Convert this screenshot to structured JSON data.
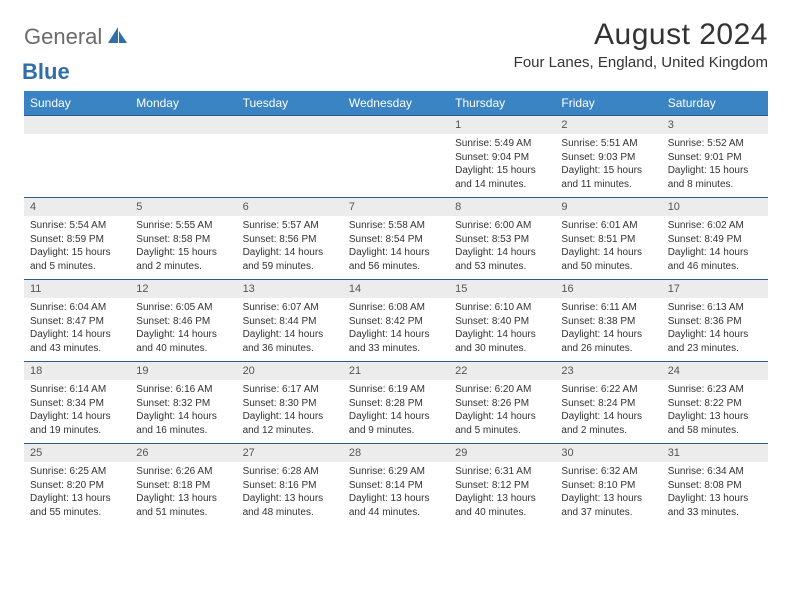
{
  "brand": {
    "part1": "General",
    "part2": "Blue"
  },
  "title": "August 2024",
  "location": "Four Lanes, England, United Kingdom",
  "colors": {
    "header_bg": "#3b84c4",
    "header_text": "#ffffff",
    "row_divider": "#2c5d8a",
    "daynum_bg": "#ececec",
    "body_text": "#333333",
    "brand_gray": "#6b6b6b",
    "brand_blue": "#2f6fa8"
  },
  "day_names": [
    "Sunday",
    "Monday",
    "Tuesday",
    "Wednesday",
    "Thursday",
    "Friday",
    "Saturday"
  ],
  "weeks": [
    [
      {
        "n": "",
        "sr": "",
        "ss": "",
        "d1": "",
        "d2": ""
      },
      {
        "n": "",
        "sr": "",
        "ss": "",
        "d1": "",
        "d2": ""
      },
      {
        "n": "",
        "sr": "",
        "ss": "",
        "d1": "",
        "d2": ""
      },
      {
        "n": "",
        "sr": "",
        "ss": "",
        "d1": "",
        "d2": ""
      },
      {
        "n": "1",
        "sr": "Sunrise: 5:49 AM",
        "ss": "Sunset: 9:04 PM",
        "d1": "Daylight: 15 hours",
        "d2": "and 14 minutes."
      },
      {
        "n": "2",
        "sr": "Sunrise: 5:51 AM",
        "ss": "Sunset: 9:03 PM",
        "d1": "Daylight: 15 hours",
        "d2": "and 11 minutes."
      },
      {
        "n": "3",
        "sr": "Sunrise: 5:52 AM",
        "ss": "Sunset: 9:01 PM",
        "d1": "Daylight: 15 hours",
        "d2": "and 8 minutes."
      }
    ],
    [
      {
        "n": "4",
        "sr": "Sunrise: 5:54 AM",
        "ss": "Sunset: 8:59 PM",
        "d1": "Daylight: 15 hours",
        "d2": "and 5 minutes."
      },
      {
        "n": "5",
        "sr": "Sunrise: 5:55 AM",
        "ss": "Sunset: 8:58 PM",
        "d1": "Daylight: 15 hours",
        "d2": "and 2 minutes."
      },
      {
        "n": "6",
        "sr": "Sunrise: 5:57 AM",
        "ss": "Sunset: 8:56 PM",
        "d1": "Daylight: 14 hours",
        "d2": "and 59 minutes."
      },
      {
        "n": "7",
        "sr": "Sunrise: 5:58 AM",
        "ss": "Sunset: 8:54 PM",
        "d1": "Daylight: 14 hours",
        "d2": "and 56 minutes."
      },
      {
        "n": "8",
        "sr": "Sunrise: 6:00 AM",
        "ss": "Sunset: 8:53 PM",
        "d1": "Daylight: 14 hours",
        "d2": "and 53 minutes."
      },
      {
        "n": "9",
        "sr": "Sunrise: 6:01 AM",
        "ss": "Sunset: 8:51 PM",
        "d1": "Daylight: 14 hours",
        "d2": "and 50 minutes."
      },
      {
        "n": "10",
        "sr": "Sunrise: 6:02 AM",
        "ss": "Sunset: 8:49 PM",
        "d1": "Daylight: 14 hours",
        "d2": "and 46 minutes."
      }
    ],
    [
      {
        "n": "11",
        "sr": "Sunrise: 6:04 AM",
        "ss": "Sunset: 8:47 PM",
        "d1": "Daylight: 14 hours",
        "d2": "and 43 minutes."
      },
      {
        "n": "12",
        "sr": "Sunrise: 6:05 AM",
        "ss": "Sunset: 8:46 PM",
        "d1": "Daylight: 14 hours",
        "d2": "and 40 minutes."
      },
      {
        "n": "13",
        "sr": "Sunrise: 6:07 AM",
        "ss": "Sunset: 8:44 PM",
        "d1": "Daylight: 14 hours",
        "d2": "and 36 minutes."
      },
      {
        "n": "14",
        "sr": "Sunrise: 6:08 AM",
        "ss": "Sunset: 8:42 PM",
        "d1": "Daylight: 14 hours",
        "d2": "and 33 minutes."
      },
      {
        "n": "15",
        "sr": "Sunrise: 6:10 AM",
        "ss": "Sunset: 8:40 PM",
        "d1": "Daylight: 14 hours",
        "d2": "and 30 minutes."
      },
      {
        "n": "16",
        "sr": "Sunrise: 6:11 AM",
        "ss": "Sunset: 8:38 PM",
        "d1": "Daylight: 14 hours",
        "d2": "and 26 minutes."
      },
      {
        "n": "17",
        "sr": "Sunrise: 6:13 AM",
        "ss": "Sunset: 8:36 PM",
        "d1": "Daylight: 14 hours",
        "d2": "and 23 minutes."
      }
    ],
    [
      {
        "n": "18",
        "sr": "Sunrise: 6:14 AM",
        "ss": "Sunset: 8:34 PM",
        "d1": "Daylight: 14 hours",
        "d2": "and 19 minutes."
      },
      {
        "n": "19",
        "sr": "Sunrise: 6:16 AM",
        "ss": "Sunset: 8:32 PM",
        "d1": "Daylight: 14 hours",
        "d2": "and 16 minutes."
      },
      {
        "n": "20",
        "sr": "Sunrise: 6:17 AM",
        "ss": "Sunset: 8:30 PM",
        "d1": "Daylight: 14 hours",
        "d2": "and 12 minutes."
      },
      {
        "n": "21",
        "sr": "Sunrise: 6:19 AM",
        "ss": "Sunset: 8:28 PM",
        "d1": "Daylight: 14 hours",
        "d2": "and 9 minutes."
      },
      {
        "n": "22",
        "sr": "Sunrise: 6:20 AM",
        "ss": "Sunset: 8:26 PM",
        "d1": "Daylight: 14 hours",
        "d2": "and 5 minutes."
      },
      {
        "n": "23",
        "sr": "Sunrise: 6:22 AM",
        "ss": "Sunset: 8:24 PM",
        "d1": "Daylight: 14 hours",
        "d2": "and 2 minutes."
      },
      {
        "n": "24",
        "sr": "Sunrise: 6:23 AM",
        "ss": "Sunset: 8:22 PM",
        "d1": "Daylight: 13 hours",
        "d2": "and 58 minutes."
      }
    ],
    [
      {
        "n": "25",
        "sr": "Sunrise: 6:25 AM",
        "ss": "Sunset: 8:20 PM",
        "d1": "Daylight: 13 hours",
        "d2": "and 55 minutes."
      },
      {
        "n": "26",
        "sr": "Sunrise: 6:26 AM",
        "ss": "Sunset: 8:18 PM",
        "d1": "Daylight: 13 hours",
        "d2": "and 51 minutes."
      },
      {
        "n": "27",
        "sr": "Sunrise: 6:28 AM",
        "ss": "Sunset: 8:16 PM",
        "d1": "Daylight: 13 hours",
        "d2": "and 48 minutes."
      },
      {
        "n": "28",
        "sr": "Sunrise: 6:29 AM",
        "ss": "Sunset: 8:14 PM",
        "d1": "Daylight: 13 hours",
        "d2": "and 44 minutes."
      },
      {
        "n": "29",
        "sr": "Sunrise: 6:31 AM",
        "ss": "Sunset: 8:12 PM",
        "d1": "Daylight: 13 hours",
        "d2": "and 40 minutes."
      },
      {
        "n": "30",
        "sr": "Sunrise: 6:32 AM",
        "ss": "Sunset: 8:10 PM",
        "d1": "Daylight: 13 hours",
        "d2": "and 37 minutes."
      },
      {
        "n": "31",
        "sr": "Sunrise: 6:34 AM",
        "ss": "Sunset: 8:08 PM",
        "d1": "Daylight: 13 hours",
        "d2": "and 33 minutes."
      }
    ]
  ]
}
